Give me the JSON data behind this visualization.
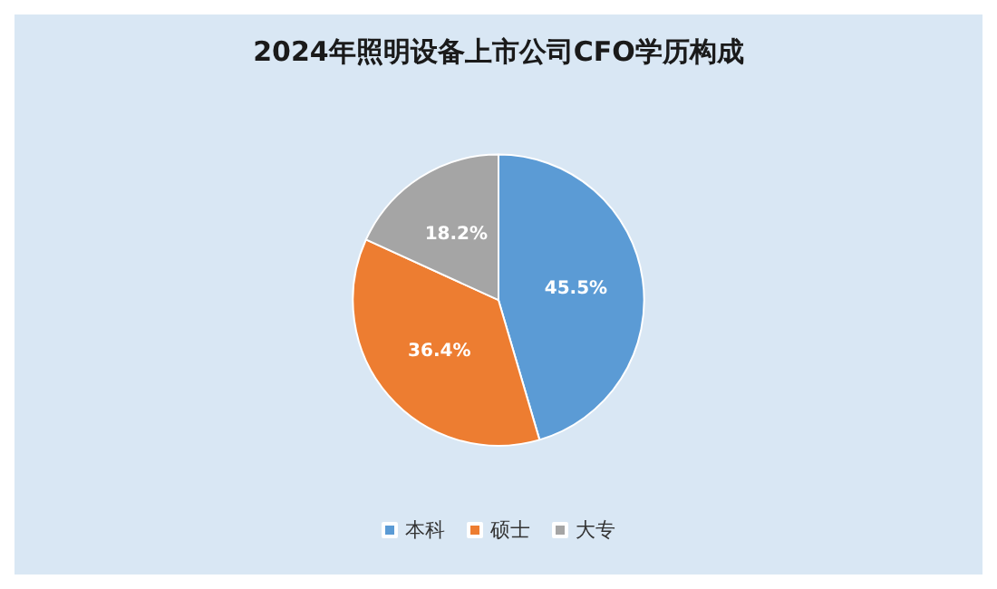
{
  "chart_data": {
    "type": "pie",
    "title": "2024年照明设备上市公司CFO学历构成",
    "categories": [
      "本科",
      "硕士",
      "大专"
    ],
    "values": [
      45.5,
      36.4,
      18.2
    ],
    "colors": [
      "#5b9bd5",
      "#ed7d31",
      "#a5a5a5"
    ],
    "value_labels": [
      "45.5%",
      "36.4%",
      "18.2%"
    ],
    "legend": "bottom"
  }
}
